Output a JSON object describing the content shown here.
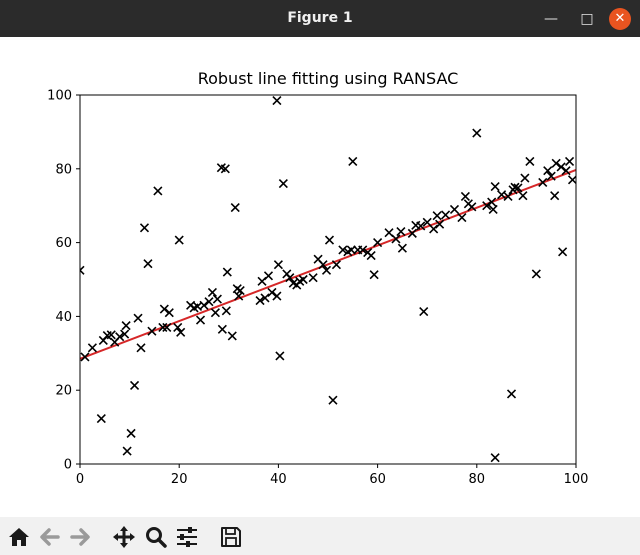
{
  "window": {
    "title": "Figure 1"
  },
  "toolbar": {
    "items": [
      {
        "name": "home-icon"
      },
      {
        "name": "back-icon"
      },
      {
        "name": "forward-icon"
      },
      {
        "name": "pan-icon"
      },
      {
        "name": "zoom-icon"
      },
      {
        "name": "configure-subplots-icon"
      },
      {
        "name": "save-icon"
      }
    ]
  },
  "chart_data": {
    "type": "scatter",
    "title": "Robust line fitting using RANSAC",
    "xlim": [
      0,
      100
    ],
    "ylim": [
      0,
      100
    ],
    "x_ticks": [
      "0",
      "20",
      "40",
      "60",
      "80",
      "100"
    ],
    "y_ticks": [
      "0",
      "20",
      "40",
      "60",
      "80",
      "100"
    ],
    "grid": false,
    "colors": {
      "points": "#000000",
      "fit_line": "#d62728"
    },
    "fit_line": {
      "x": [
        0,
        100
      ],
      "y": [
        28.5,
        79.7
      ]
    },
    "points": [
      [
        0,
        52.5
      ],
      [
        1,
        29
      ],
      [
        2.5,
        31.5
      ],
      [
        4.3,
        12.3
      ],
      [
        4.7,
        33.5
      ],
      [
        5.5,
        34.8
      ],
      [
        6.3,
        35
      ],
      [
        7,
        33
      ],
      [
        8,
        34.5
      ],
      [
        9,
        35.2
      ],
      [
        9.3,
        37.5
      ],
      [
        9.5,
        3.5
      ],
      [
        10.3,
        8.3
      ],
      [
        11,
        21.3
      ],
      [
        11.7,
        39.5
      ],
      [
        12.3,
        31.5
      ],
      [
        13,
        64
      ],
      [
        13.7,
        54.3
      ],
      [
        14.5,
        36
      ],
      [
        15.7,
        74
      ],
      [
        16.7,
        37
      ],
      [
        17,
        42
      ],
      [
        17.5,
        37
      ],
      [
        18,
        41
      ],
      [
        19.7,
        37
      ],
      [
        20,
        60.7
      ],
      [
        20.3,
        35.7
      ],
      [
        22.3,
        43
      ],
      [
        23,
        42.3
      ],
      [
        23.7,
        42.7
      ],
      [
        24.3,
        39
      ],
      [
        25,
        43
      ],
      [
        26,
        44
      ],
      [
        26.7,
        46.5
      ],
      [
        27.3,
        41
      ],
      [
        27.7,
        44.7
      ],
      [
        28.5,
        80.3
      ],
      [
        28.7,
        36.5
      ],
      [
        29.3,
        80
      ],
      [
        29.5,
        41.5
      ],
      [
        29.7,
        52
      ],
      [
        30.7,
        34.7
      ],
      [
        31.3,
        69.5
      ],
      [
        31.7,
        47.5
      ],
      [
        32,
        45.5
      ],
      [
        32.3,
        47
      ],
      [
        36.3,
        44.3
      ],
      [
        36.7,
        49.5
      ],
      [
        37.3,
        45
      ],
      [
        38,
        51
      ],
      [
        38.7,
        46.5
      ],
      [
        39.7,
        98.5
      ],
      [
        39.7,
        45.5
      ],
      [
        40,
        54
      ],
      [
        40.3,
        29.3
      ],
      [
        41,
        76
      ],
      [
        41.7,
        51.5
      ],
      [
        42.3,
        50.5
      ],
      [
        43,
        49
      ],
      [
        43.7,
        48.5
      ],
      [
        44.3,
        49.5
      ],
      [
        45,
        50
      ],
      [
        47,
        50.5
      ],
      [
        48,
        55.5
      ],
      [
        49,
        54
      ],
      [
        49.7,
        52.5
      ],
      [
        50.3,
        60.7
      ],
      [
        51,
        17.3
      ],
      [
        51.7,
        54
      ],
      [
        53,
        58
      ],
      [
        54,
        57.5
      ],
      [
        54.7,
        58
      ],
      [
        55,
        82
      ],
      [
        56,
        58
      ],
      [
        57,
        58
      ],
      [
        58,
        57.3
      ],
      [
        58.7,
        56.5
      ],
      [
        59.3,
        51.3
      ],
      [
        60,
        60
      ],
      [
        62.3,
        62.7
      ],
      [
        63.7,
        61
      ],
      [
        64.7,
        63
      ],
      [
        65,
        58.5
      ],
      [
        67,
        62.5
      ],
      [
        67.7,
        64.7
      ],
      [
        68.7,
        64.5
      ],
      [
        69.3,
        41.3
      ],
      [
        70,
        65.5
      ],
      [
        71.3,
        63.7
      ],
      [
        72,
        67.3
      ],
      [
        72.5,
        65
      ],
      [
        73.7,
        67.5
      ],
      [
        75.5,
        69
      ],
      [
        77,
        66.8
      ],
      [
        77.7,
        72.5
      ],
      [
        78.3,
        70.5
      ],
      [
        79,
        69.7
      ],
      [
        80,
        89.7
      ],
      [
        82,
        70
      ],
      [
        83,
        71
      ],
      [
        83.3,
        69
      ],
      [
        83.7,
        75.2
      ],
      [
        83.7,
        1.7
      ],
      [
        85,
        73
      ],
      [
        86.3,
        72.5
      ],
      [
        87,
        19
      ],
      [
        87.3,
        74.3
      ],
      [
        87.7,
        75
      ],
      [
        88.3,
        74.8
      ],
      [
        89.3,
        72.7
      ],
      [
        89.7,
        77.5
      ],
      [
        90.7,
        82
      ],
      [
        92,
        51.5
      ],
      [
        93.3,
        76.3
      ],
      [
        94.3,
        79.5
      ],
      [
        95,
        78
      ],
      [
        95.7,
        72.7
      ],
      [
        96,
        81.5
      ],
      [
        97,
        80.5
      ],
      [
        97.3,
        57.5
      ],
      [
        98,
        79.5
      ],
      [
        98.7,
        82
      ],
      [
        99.3,
        77
      ]
    ]
  }
}
